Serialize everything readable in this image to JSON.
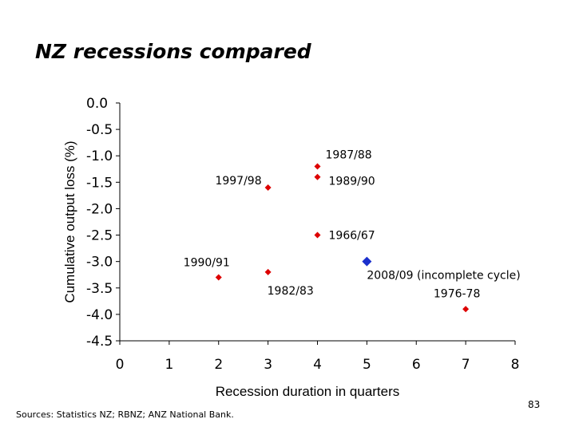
{
  "title": "NZ recessions compared",
  "source": "Sources:  Statistics NZ; RBNZ; ANZ National Bank.",
  "page_number": "83",
  "chart_data": {
    "type": "scatter",
    "xlabel": "Recession duration in quarters",
    "ylabel": "Cumulative output loss (%)",
    "xlim": [
      0,
      8
    ],
    "ylim": [
      -4.5,
      0.0
    ],
    "x_ticks": [
      "0",
      "1",
      "2",
      "3",
      "4",
      "5",
      "6",
      "7",
      "8"
    ],
    "y_ticks": [
      "0.0",
      "-0.5",
      "-1.0",
      "-1.5",
      "-2.0",
      "-2.5",
      "-3.0",
      "-3.5",
      "-4.0",
      "-4.5"
    ],
    "grid": false,
    "colors": {
      "past": "#dd0000",
      "current": "#1a2fcc"
    },
    "points": [
      {
        "label": "1987/88",
        "x": 4,
        "y": -1.2,
        "color": "#dd0000"
      },
      {
        "label": "1989/90",
        "x": 4,
        "y": -1.4,
        "color": "#dd0000"
      },
      {
        "label": "1997/98",
        "x": 3,
        "y": -1.6,
        "color": "#dd0000"
      },
      {
        "label": "1966/67",
        "x": 4,
        "y": -2.5,
        "color": "#dd0000"
      },
      {
        "label": "1990/91",
        "x": 2,
        "y": -3.3,
        "color": "#dd0000"
      },
      {
        "label": "1982/83",
        "x": 3,
        "y": -3.2,
        "color": "#dd0000"
      },
      {
        "label": "2008/09 (incomplete cycle)",
        "x": 5,
        "y": -3.0,
        "color": "#1a2fcc"
      },
      {
        "label": "1976-78",
        "x": 7,
        "y": -3.9,
        "color": "#dd0000"
      }
    ]
  }
}
